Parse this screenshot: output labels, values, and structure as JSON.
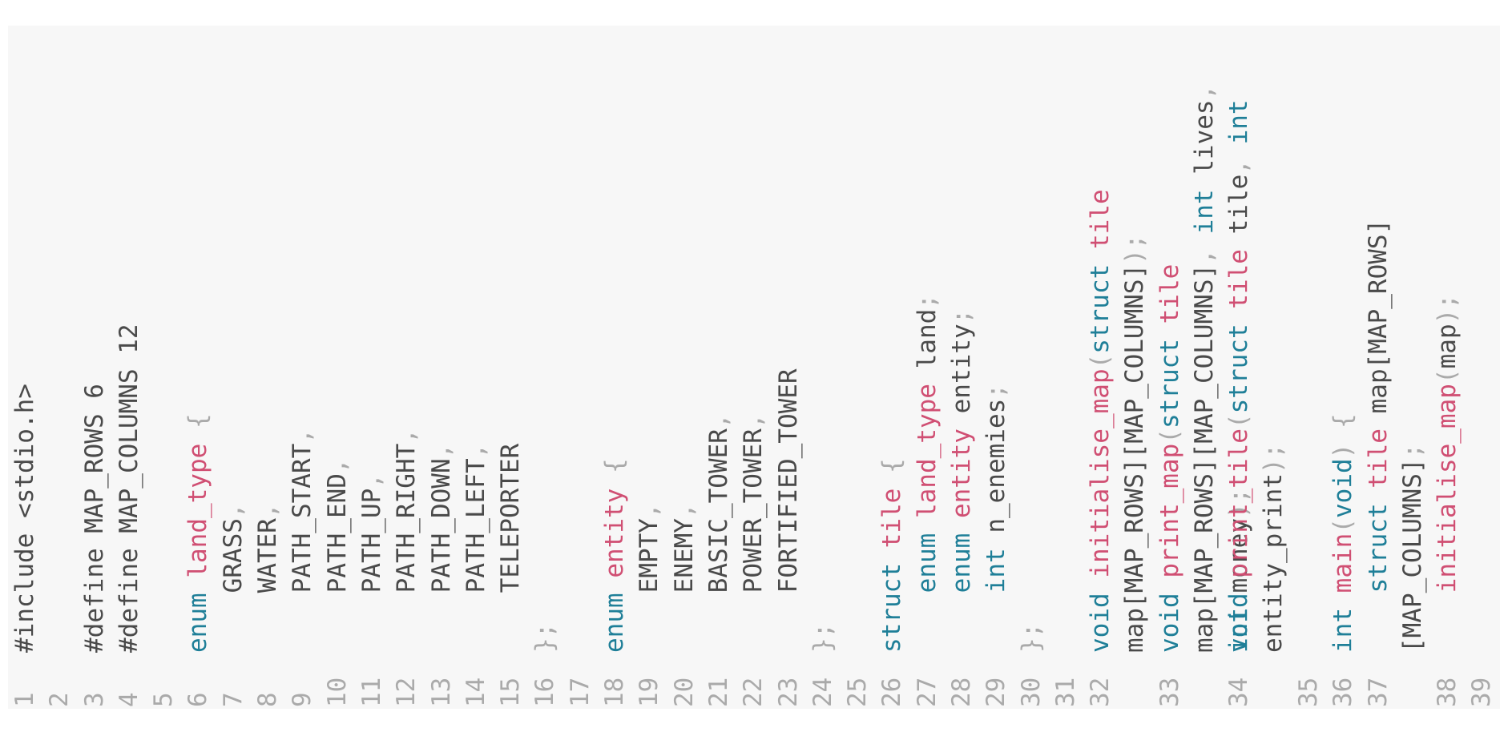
{
  "lines": [
    {
      "n": "1",
      "tokens": [
        {
          "t": "#include <stdio.h>",
          "c": "plain"
        }
      ]
    },
    {
      "n": "2",
      "tokens": []
    },
    {
      "n": "3",
      "tokens": [
        {
          "t": "#define MAP_ROWS 6",
          "c": "plain"
        }
      ]
    },
    {
      "n": "4",
      "tokens": [
        {
          "t": "#define MAP_COLUMNS 12",
          "c": "plain"
        }
      ]
    },
    {
      "n": "5",
      "tokens": []
    },
    {
      "n": "6",
      "tokens": [
        {
          "t": "enum",
          "c": "kw"
        },
        {
          "t": " ",
          "c": "plain"
        },
        {
          "t": "land_type",
          "c": "fn"
        },
        {
          "t": " {",
          "c": "punc"
        }
      ]
    },
    {
      "n": "7",
      "tokens": [
        {
          "t": "    GRASS",
          "c": "plain"
        },
        {
          "t": ",",
          "c": "punc"
        }
      ]
    },
    {
      "n": "8",
      "tokens": [
        {
          "t": "    WATER",
          "c": "plain"
        },
        {
          "t": ",",
          "c": "punc"
        }
      ]
    },
    {
      "n": "9",
      "tokens": [
        {
          "t": "    PATH_START",
          "c": "plain"
        },
        {
          "t": ",",
          "c": "punc"
        }
      ]
    },
    {
      "n": "10",
      "tokens": [
        {
          "t": "    PATH_END",
          "c": "plain"
        },
        {
          "t": ",",
          "c": "punc"
        }
      ]
    },
    {
      "n": "11",
      "tokens": [
        {
          "t": "    PATH_UP",
          "c": "plain"
        },
        {
          "t": ",",
          "c": "punc"
        }
      ]
    },
    {
      "n": "12",
      "tokens": [
        {
          "t": "    PATH_RIGHT",
          "c": "plain"
        },
        {
          "t": ",",
          "c": "punc"
        }
      ]
    },
    {
      "n": "13",
      "tokens": [
        {
          "t": "    PATH_DOWN",
          "c": "plain"
        },
        {
          "t": ",",
          "c": "punc"
        }
      ]
    },
    {
      "n": "14",
      "tokens": [
        {
          "t": "    PATH_LEFT",
          "c": "plain"
        },
        {
          "t": ",",
          "c": "punc"
        }
      ]
    },
    {
      "n": "15",
      "tokens": [
        {
          "t": "    TELEPORTER",
          "c": "plain"
        }
      ]
    },
    {
      "n": "16",
      "tokens": [
        {
          "t": "};",
          "c": "punc"
        }
      ]
    },
    {
      "n": "17",
      "tokens": []
    },
    {
      "n": "18",
      "tokens": [
        {
          "t": "enum",
          "c": "kw"
        },
        {
          "t": " ",
          "c": "plain"
        },
        {
          "t": "entity",
          "c": "fn"
        },
        {
          "t": " {",
          "c": "punc"
        }
      ]
    },
    {
      "n": "19",
      "tokens": [
        {
          "t": "    EMPTY",
          "c": "plain"
        },
        {
          "t": ",",
          "c": "punc"
        }
      ]
    },
    {
      "n": "20",
      "tokens": [
        {
          "t": "    ENEMY",
          "c": "plain"
        },
        {
          "t": ",",
          "c": "punc"
        }
      ]
    },
    {
      "n": "21",
      "tokens": [
        {
          "t": "    BASIC_TOWER",
          "c": "plain"
        },
        {
          "t": ",",
          "c": "punc"
        }
      ]
    },
    {
      "n": "22",
      "tokens": [
        {
          "t": "    POWER_TOWER",
          "c": "plain"
        },
        {
          "t": ",",
          "c": "punc"
        }
      ]
    },
    {
      "n": "23",
      "tokens": [
        {
          "t": "    FORTIFIED_TOWER",
          "c": "plain"
        }
      ]
    },
    {
      "n": "24",
      "tokens": [
        {
          "t": "};",
          "c": "punc"
        }
      ]
    },
    {
      "n": "25",
      "tokens": []
    },
    {
      "n": "26",
      "tokens": [
        {
          "t": "struct",
          "c": "kw"
        },
        {
          "t": " ",
          "c": "plain"
        },
        {
          "t": "tile",
          "c": "fn"
        },
        {
          "t": " {",
          "c": "punc"
        }
      ]
    },
    {
      "n": "27",
      "tokens": [
        {
          "t": "    ",
          "c": "plain"
        },
        {
          "t": "enum",
          "c": "kw"
        },
        {
          "t": " ",
          "c": "plain"
        },
        {
          "t": "land_type",
          "c": "fn"
        },
        {
          "t": " land",
          "c": "plain"
        },
        {
          "t": ";",
          "c": "punc"
        }
      ]
    },
    {
      "n": "28",
      "tokens": [
        {
          "t": "    ",
          "c": "plain"
        },
        {
          "t": "enum",
          "c": "kw"
        },
        {
          "t": " ",
          "c": "plain"
        },
        {
          "t": "entity",
          "c": "fn"
        },
        {
          "t": " entity",
          "c": "plain"
        },
        {
          "t": ";",
          "c": "punc"
        }
      ]
    },
    {
      "n": "29",
      "tokens": [
        {
          "t": "    ",
          "c": "plain"
        },
        {
          "t": "int",
          "c": "kw"
        },
        {
          "t": " n_enemies",
          "c": "plain"
        },
        {
          "t": ";",
          "c": "punc"
        }
      ]
    },
    {
      "n": "30",
      "tokens": [
        {
          "t": "};",
          "c": "punc"
        }
      ]
    },
    {
      "n": "31",
      "tokens": []
    },
    {
      "n": "32",
      "tall": true,
      "tokens": [
        {
          "t": "void",
          "c": "kw"
        },
        {
          "t": " ",
          "c": "plain"
        },
        {
          "t": "initialise_map",
          "c": "fn"
        },
        {
          "t": "(",
          "c": "punc"
        },
        {
          "t": "struct",
          "c": "kw"
        },
        {
          "t": " ",
          "c": "plain"
        },
        {
          "t": "tile",
          "c": "fn"
        },
        {
          "t": " map[MAP_ROWS][MAP_COLUMNS]",
          "c": "plain"
        },
        {
          "t": ");",
          "c": "punc"
        }
      ]
    },
    {
      "n": "33",
      "tall": true,
      "tokens": [
        {
          "t": "void",
          "c": "kw"
        },
        {
          "t": " ",
          "c": "plain"
        },
        {
          "t": "print_map",
          "c": "fn"
        },
        {
          "t": "(",
          "c": "punc"
        },
        {
          "t": "struct",
          "c": "kw"
        },
        {
          "t": " ",
          "c": "plain"
        },
        {
          "t": "tile",
          "c": "fn"
        },
        {
          "t": " map[MAP_ROWS][MAP_COLUMNS]",
          "c": "plain"
        },
        {
          "t": ", ",
          "c": "punc"
        },
        {
          "t": "int",
          "c": "kw"
        },
        {
          "t": " lives",
          "c": "plain"
        },
        {
          "t": ", ",
          "c": "punc"
        },
        {
          "t": "int",
          "c": "kw"
        },
        {
          "t": " money",
          "c": "plain"
        },
        {
          "t": ");",
          "c": "punc"
        }
      ]
    },
    {
      "n": "34",
      "tall": true,
      "tokens": [
        {
          "t": "void",
          "c": "kw"
        },
        {
          "t": " ",
          "c": "plain"
        },
        {
          "t": "print_tile",
          "c": "fn"
        },
        {
          "t": "(",
          "c": "punc"
        },
        {
          "t": "struct",
          "c": "kw"
        },
        {
          "t": " ",
          "c": "plain"
        },
        {
          "t": "tile",
          "c": "fn"
        },
        {
          "t": " tile",
          "c": "plain"
        },
        {
          "t": ", ",
          "c": "punc"
        },
        {
          "t": "int",
          "c": "kw"
        },
        {
          "t": " entity_print",
          "c": "plain"
        },
        {
          "t": ");",
          "c": "punc"
        }
      ]
    },
    {
      "n": "35",
      "tokens": []
    },
    {
      "n": "36",
      "tokens": [
        {
          "t": "int",
          "c": "kw"
        },
        {
          "t": " ",
          "c": "plain"
        },
        {
          "t": "main",
          "c": "fn"
        },
        {
          "t": "(",
          "c": "punc"
        },
        {
          "t": "void",
          "c": "kw"
        },
        {
          "t": ") {",
          "c": "punc"
        }
      ]
    },
    {
      "n": "37",
      "tall": true,
      "tokens": [
        {
          "t": "    ",
          "c": "plain"
        },
        {
          "t": "struct",
          "c": "kw"
        },
        {
          "t": " ",
          "c": "plain"
        },
        {
          "t": "tile",
          "c": "fn"
        },
        {
          "t": " map[MAP_ROWS][MAP_COLUMNS]",
          "c": "plain"
        },
        {
          "t": ";",
          "c": "punc"
        }
      ]
    },
    {
      "n": "38",
      "tokens": [
        {
          "t": "    ",
          "c": "plain"
        },
        {
          "t": "initialise_map",
          "c": "fn"
        },
        {
          "t": "(",
          "c": "punc"
        },
        {
          "t": "map",
          "c": "plain"
        },
        {
          "t": ");",
          "c": "punc"
        }
      ]
    },
    {
      "n": "39",
      "tokens": []
    }
  ]
}
